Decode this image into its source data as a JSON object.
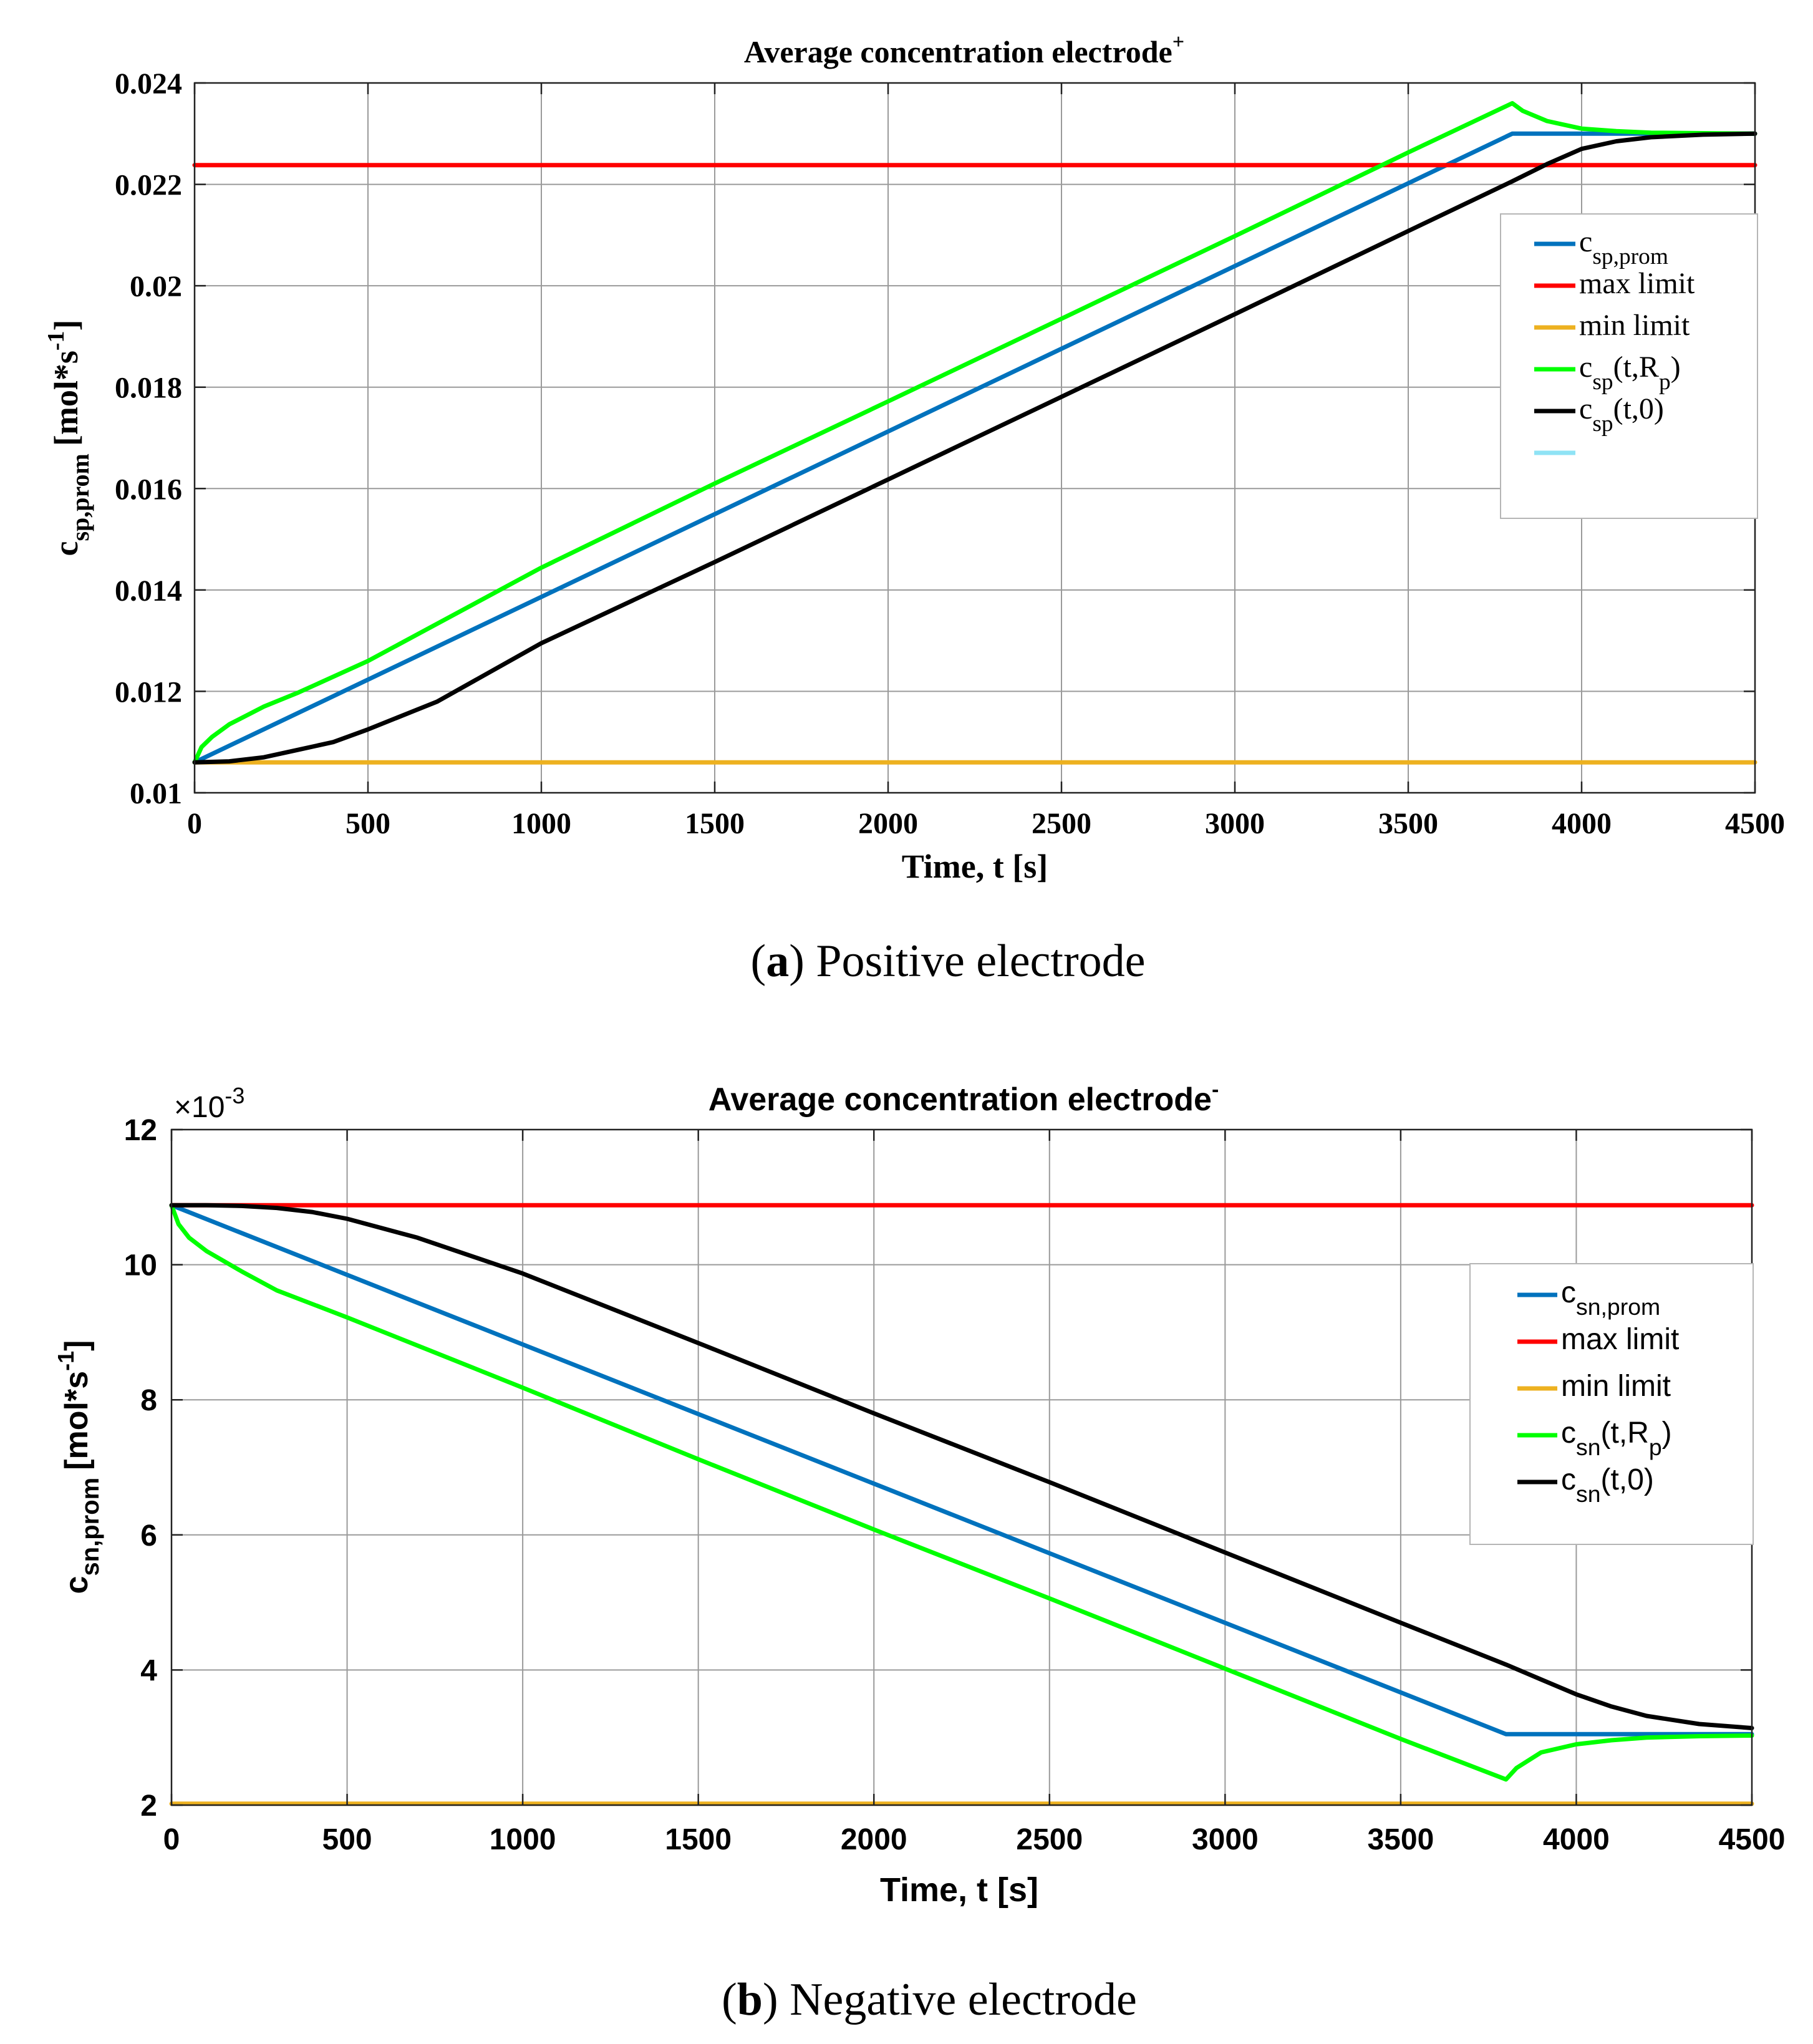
{
  "figure": {
    "captions": [
      {
        "letter": "a",
        "text": ") Positive electrode",
        "open": "("
      },
      {
        "letter": "b",
        "text": ") Negative electrode",
        "open": "("
      }
    ]
  },
  "colors": {
    "blue": "#0072BD",
    "red": "#FF0000",
    "orange": "#EDB120",
    "green": "#00FF00",
    "black": "#000000",
    "cyan": "#8FE3F5",
    "grid": "#9a9a9a"
  },
  "chart_data": [
    {
      "type": "line",
      "title": "Average concentration electrode",
      "title_sup": "+",
      "xlabel": "Time, t [s]",
      "ylabel_main": "c",
      "ylabel_sub": "sp,prom",
      "ylabel_unit_pre": "[mol*s",
      "ylabel_unit_sup": "-1",
      "ylabel_unit_post": "]",
      "xlim": [
        0,
        4500
      ],
      "ylim": [
        0.01,
        0.024
      ],
      "xticks": [
        0,
        500,
        1000,
        1500,
        2000,
        2500,
        3000,
        3500,
        4000,
        4500
      ],
      "xtick_labels": [
        "0",
        "500",
        "1000",
        "1500",
        "2000",
        "2500",
        "3000",
        "3500",
        "4000",
        "4500"
      ],
      "yticks": [
        0.01,
        0.012,
        0.014,
        0.016,
        0.018,
        0.02,
        0.022,
        0.024
      ],
      "ytick_labels": [
        "0.01",
        "0.012",
        "0.014",
        "0.016",
        "0.018",
        "0.02",
        "0.022",
        "0.024"
      ],
      "exponent_label": "",
      "grid": true,
      "legend_position": "right",
      "series": [
        {
          "name": "c_sp,prom",
          "color": "#0072BD",
          "x": [
            0,
            3800,
            4500
          ],
          "y": [
            0.0106,
            0.023,
            0.023
          ],
          "legend": {
            "main": "c",
            "sub": "sp,prom",
            "rest": ""
          }
        },
        {
          "name": "max limit",
          "color": "#FF0000",
          "x": [
            0,
            4500
          ],
          "y": [
            0.02238,
            0.02238
          ],
          "legend": {
            "main": "max limit",
            "sub": "",
            "rest": ""
          }
        },
        {
          "name": "min limit",
          "color": "#EDB120",
          "x": [
            0,
            4500
          ],
          "y": [
            0.0106,
            0.0106
          ],
          "legend": {
            "main": "min limit",
            "sub": "",
            "rest": ""
          }
        },
        {
          "name": "c_sp(t,R_p)",
          "color": "#00FF00",
          "x": [
            0,
            20,
            50,
            100,
            200,
            300,
            500,
            1000,
            1500,
            2000,
            2500,
            3000,
            3500,
            3800,
            3830,
            3900,
            4000,
            4100,
            4200,
            4350,
            4500
          ],
          "y": [
            0.0106,
            0.0109,
            0.0111,
            0.01135,
            0.0117,
            0.01198,
            0.0126,
            0.01444,
            0.0161,
            0.01772,
            0.01935,
            0.02098,
            0.02263,
            0.0236,
            0.02345,
            0.02325,
            0.0231,
            0.02305,
            0.02302,
            0.02301,
            0.023
          ],
          "legend": {
            "main": "c",
            "sub": "sp",
            "rest": "(t,R",
            "sub2": "p",
            "tail": ")"
          }
        },
        {
          "name": "c_sp(t,0)",
          "color": "#000000",
          "x": [
            0,
            100,
            200,
            300,
            400,
            500,
            700,
            1000,
            1500,
            2000,
            2500,
            3000,
            3500,
            3800,
            3900,
            4000,
            4100,
            4200,
            4350,
            4500
          ],
          "y": [
            0.0106,
            0.01062,
            0.0107,
            0.01085,
            0.011,
            0.01125,
            0.0118,
            0.01295,
            0.01455,
            0.01618,
            0.01781,
            0.01944,
            0.02108,
            0.02206,
            0.0224,
            0.0227,
            0.02285,
            0.02293,
            0.02298,
            0.023
          ],
          "legend": {
            "main": "c",
            "sub": "sp",
            "rest": "(t,0)"
          }
        },
        {
          "name": "(unlabeled)",
          "color": "#8FE3F5",
          "x": [],
          "y": [],
          "legend": {
            "main": "",
            "sub": "",
            "rest": ""
          }
        }
      ]
    },
    {
      "type": "line",
      "title": "Average concentration electrode",
      "title_sup": "-",
      "xlabel": "Time, t [s]",
      "ylabel_main": "c",
      "ylabel_sub": "sn,prom",
      "ylabel_unit_pre": "[mol*s",
      "ylabel_unit_sup": "-1",
      "ylabel_unit_post": "]",
      "xlim": [
        0,
        4500
      ],
      "ylim": [
        2,
        12
      ],
      "xticks": [
        0,
        500,
        1000,
        1500,
        2000,
        2500,
        3000,
        3500,
        4000,
        4500
      ],
      "xtick_labels": [
        "0",
        "500",
        "1000",
        "1500",
        "2000",
        "2500",
        "3000",
        "3500",
        "4000",
        "4500"
      ],
      "yticks": [
        2,
        4,
        6,
        8,
        10,
        12
      ],
      "ytick_labels": [
        "2",
        "4",
        "6",
        "8",
        "10",
        "12"
      ],
      "exponent_label": "×10",
      "exponent_sup": "-3",
      "grid": true,
      "legend_position": "right",
      "series": [
        {
          "name": "c_sn,prom",
          "color": "#0072BD",
          "x": [
            0,
            3800,
            4500
          ],
          "y": [
            10.88,
            3.05,
            3.05
          ],
          "legend": {
            "main": "c",
            "sub": "sn,prom",
            "rest": ""
          }
        },
        {
          "name": "max limit",
          "color": "#FF0000",
          "x": [
            0,
            4500
          ],
          "y": [
            10.88,
            10.88
          ],
          "legend": {
            "main": "max limit",
            "sub": "",
            "rest": ""
          }
        },
        {
          "name": "min limit",
          "color": "#EDB120",
          "x": [
            0,
            4500
          ],
          "y": [
            2.02,
            2.02
          ],
          "legend": {
            "main": "min limit",
            "sub": "",
            "rest": ""
          }
        },
        {
          "name": "c_sn(t,R_p)",
          "color": "#00FF00",
          "x": [
            0,
            20,
            50,
            100,
            200,
            300,
            500,
            1000,
            1500,
            2000,
            2500,
            3000,
            3500,
            3800,
            3830,
            3900,
            4000,
            4100,
            4200,
            4350,
            4500
          ],
          "y": [
            10.88,
            10.6,
            10.4,
            10.2,
            9.9,
            9.62,
            9.22,
            8.18,
            7.12,
            6.08,
            5.06,
            4.02,
            2.98,
            2.38,
            2.55,
            2.78,
            2.9,
            2.96,
            3.0,
            3.02,
            3.03
          ],
          "legend": {
            "main": "c",
            "sub": "sn",
            "rest": "(t,R",
            "sub2": "p",
            "tail": ")"
          }
        },
        {
          "name": "c_sn(t,0)",
          "color": "#000000",
          "x": [
            0,
            100,
            200,
            300,
            400,
            500,
            700,
            1000,
            1500,
            2000,
            2500,
            3000,
            3500,
            3800,
            3900,
            4000,
            4100,
            4200,
            4350,
            4500
          ],
          "y": [
            10.88,
            10.88,
            10.87,
            10.84,
            10.78,
            10.68,
            10.4,
            9.87,
            8.84,
            7.8,
            6.78,
            5.74,
            4.7,
            4.08,
            3.86,
            3.64,
            3.46,
            3.32,
            3.2,
            3.14
          ],
          "legend": {
            "main": "c",
            "sub": "sn",
            "rest": "(t,0)"
          }
        }
      ]
    }
  ]
}
